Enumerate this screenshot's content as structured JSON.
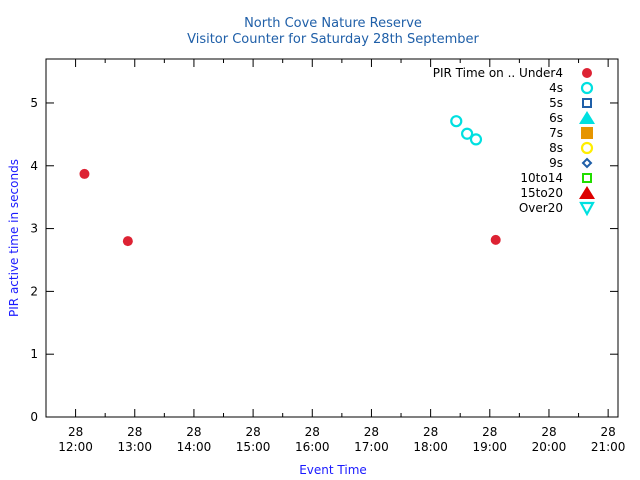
{
  "chart_data": {
    "type": "scatter",
    "title": "North Cove Nature Reserve",
    "subtitle": "Visitor Counter for Saturday 28th September",
    "xlabel": "Event Time",
    "ylabel": "PIR active time in seconds",
    "legend_title": "PIR Time on ..",
    "legend_position": "top-right",
    "grid": false,
    "xlim": [
      "11:30",
      "21:10"
    ],
    "ylim": [
      0,
      5.7
    ],
    "x_ticks": [
      {
        "day": "28",
        "time": "12:00"
      },
      {
        "day": "28",
        "time": "13:00"
      },
      {
        "day": "28",
        "time": "14:00"
      },
      {
        "day": "28",
        "time": "15:00"
      },
      {
        "day": "28",
        "time": "16:00"
      },
      {
        "day": "28",
        "time": "17:00"
      },
      {
        "day": "28",
        "time": "18:00"
      },
      {
        "day": "28",
        "time": "19:00"
      },
      {
        "day": "28",
        "time": "20:00"
      },
      {
        "day": "28",
        "time": "21:00"
      }
    ],
    "y_ticks": [
      "0",
      "1",
      "2",
      "3",
      "4",
      "5"
    ],
    "series": [
      {
        "name": "Under4",
        "color": "#dd2233",
        "marker": "circle-filled",
        "points": [
          {
            "x": "12:09",
            "y": 3.87
          },
          {
            "x": "12:53",
            "y": 2.8
          },
          {
            "x": "19:06",
            "y": 2.82
          }
        ]
      },
      {
        "name": "4s",
        "color": "#00e0e0",
        "marker": "circle-open",
        "points": [
          {
            "x": "18:26",
            "y": 4.71
          },
          {
            "x": "18:37",
            "y": 4.51
          },
          {
            "x": "18:46",
            "y": 4.42
          }
        ]
      },
      {
        "name": "5s",
        "color": "#1f5fa8",
        "marker": "square-open",
        "points": []
      },
      {
        "name": "6s",
        "color": "#00e0e0",
        "marker": "triangle-up-filled",
        "points": []
      },
      {
        "name": "7s",
        "color": "#e69500",
        "marker": "square-filled",
        "points": []
      },
      {
        "name": "8s",
        "color": "#ffee00",
        "marker": "circle-open",
        "points": []
      },
      {
        "name": "9s",
        "color": "#1f5fa8",
        "marker": "diamond-open",
        "points": []
      },
      {
        "name": "10to14",
        "color": "#22dd00",
        "marker": "square-open",
        "points": []
      },
      {
        "name": "15to20",
        "color": "#dd0000",
        "marker": "triangle-up-filled",
        "points": []
      },
      {
        "name": "Over20",
        "color": "#00e0e0",
        "marker": "triangle-down-open",
        "points": []
      }
    ]
  }
}
